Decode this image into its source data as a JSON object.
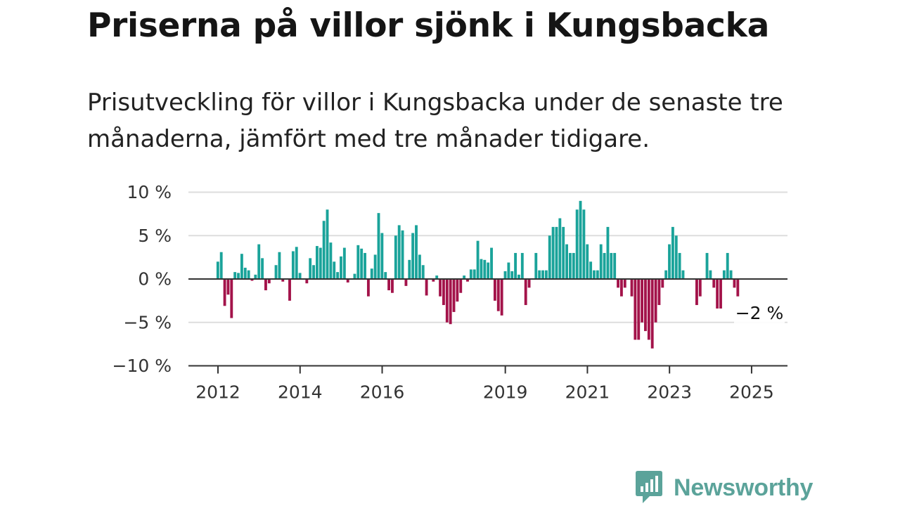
{
  "title": "Priserna på villor sjönk i Kungsbacka",
  "subtitle": "Prisutveckling för villor i Kungsbacka under de senaste tre månaderna, jämfört med tre månader tidigare.",
  "brand": {
    "name": "Newsworthy",
    "icon": "newsworthy-logo-icon"
  },
  "colors": {
    "positive": "#1aa39a",
    "negative": "#a3134a",
    "grid": "#dddddd",
    "axis": "#333333",
    "text": "#333333"
  },
  "chart_data": {
    "type": "bar",
    "title": "Priserna på villor sjönk i Kungsbacka",
    "xlabel": "",
    "ylabel": "",
    "ylim": [
      -10,
      10
    ],
    "y_ticks": [
      10,
      5,
      0,
      -5,
      -10
    ],
    "y_tick_labels": [
      "10 %",
      "5 %",
      "0 %",
      "−5 %",
      "−10 %"
    ],
    "x_ticks": [
      "2012",
      "2014",
      "2016",
      "2019",
      "2021",
      "2023",
      "2025"
    ],
    "grid": true,
    "start": "2012-01",
    "frequency": "monthly",
    "values": [
      2.0,
      3.1,
      -3.1,
      -1.8,
      -4.5,
      0.8,
      0.7,
      2.9,
      1.3,
      1.0,
      -0.2,
      0.5,
      4.0,
      2.4,
      -1.3,
      -0.5,
      0.0,
      1.6,
      3.1,
      -0.3,
      0.0,
      -2.5,
      3.2,
      3.7,
      0.7,
      0.0,
      -0.5,
      2.4,
      1.6,
      3.8,
      3.6,
      6.7,
      8.0,
      4.2,
      2.0,
      0.8,
      2.6,
      3.6,
      -0.4,
      0.0,
      0.6,
      3.9,
      3.5,
      3.0,
      -2.0,
      1.2,
      2.8,
      7.6,
      5.3,
      0.8,
      -1.3,
      -1.6,
      5.0,
      6.2,
      5.6,
      -0.8,
      2.2,
      5.3,
      6.2,
      2.8,
      1.6,
      -1.9,
      0.0,
      -0.3,
      0.4,
      -2.0,
      -3.0,
      -5.0,
      -5.2,
      -3.8,
      -2.6,
      -1.6,
      0.4,
      -0.3,
      1.1,
      1.1,
      4.4,
      2.3,
      2.2,
      1.9,
      3.6,
      -2.5,
      -3.7,
      -4.2,
      0.9,
      1.9,
      0.9,
      3.0,
      0.5,
      3.0,
      -3.0,
      -1.0,
      0.0,
      3.0,
      1.0,
      1.0,
      1.0,
      5.0,
      6.0,
      6.0,
      7.0,
      6.0,
      4.0,
      3.0,
      3.0,
      8.0,
      9.0,
      8.0,
      4.0,
      2.0,
      1.0,
      1.0,
      4.0,
      3.0,
      6.0,
      3.0,
      3.0,
      -1.0,
      -2.0,
      -1.0,
      0.0,
      -2.0,
      -7.0,
      -7.0,
      -5.0,
      -6.0,
      -7.0,
      -8.0,
      -5.0,
      -3.0,
      -1.0,
      1.0,
      4.0,
      6.0,
      5.0,
      3.0,
      1.0,
      0.0,
      0.0,
      0.0,
      -3.0,
      -2.0,
      0.0,
      3.0,
      1.0,
      -1.0,
      -3.4,
      -3.4,
      1.0,
      3.0,
      1.0,
      -1.0,
      -2.0
    ],
    "annotation": {
      "text": "−2 %",
      "value": -2
    }
  }
}
